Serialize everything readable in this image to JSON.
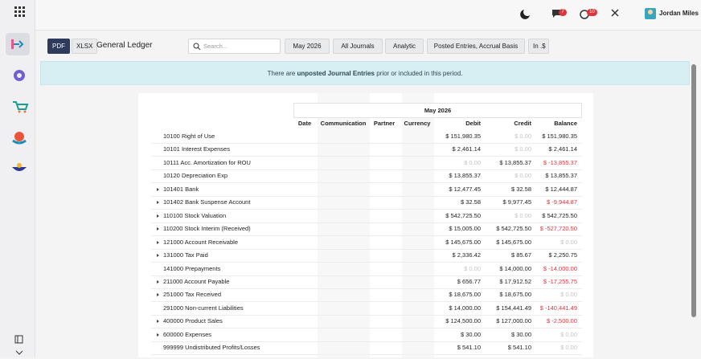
{
  "topbar": {
    "user": "Jordan Miles",
    "messages_badge": "7",
    "activities_badge": "10"
  },
  "toolbar": {
    "pdf": "PDF",
    "xlsx": "XLSX",
    "title": "General Ledger",
    "search_placeholder": "Search...",
    "filters": [
      "May 2026",
      "All Journals",
      "Analytic",
      "Posted Entries, Accrual Basis",
      "In .$"
    ]
  },
  "banner": {
    "before": "There are ",
    "link": "unposted Journal Entries",
    "after": " prior or included in this period."
  },
  "table": {
    "period": "May 2026",
    "columns": [
      "Date",
      "Communication",
      "Partner",
      "Currency",
      "Debit",
      "Credit",
      "Balance"
    ],
    "rows": [
      {
        "name": "10100 Right of Use",
        "expandable": false,
        "debit": "$ 151,980.35",
        "credit": "$ 0.00",
        "balance": "$ 151,980.35"
      },
      {
        "name": "10101 Interest Expenses",
        "expandable": false,
        "debit": "$ 2,461.14",
        "credit": "$ 0.00",
        "balance": "$ 2,461.14"
      },
      {
        "name": "10111 Acc. Amortization for ROU",
        "expandable": false,
        "debit": "$ 0.00",
        "credit": "$ 13,855.37",
        "balance": "$ -13,855.37"
      },
      {
        "name": "10120 Depreciation Exp",
        "expandable": false,
        "debit": "$ 13,855.37",
        "credit": "$ 0.00",
        "balance": "$ 13,855.37"
      },
      {
        "name": "101401 Bank",
        "expandable": true,
        "debit": "$ 12,477.45",
        "credit": "$ 32.58",
        "balance": "$ 12,444.87"
      },
      {
        "name": "101402 Bank Suspense Account",
        "expandable": true,
        "debit": "$ 32.58",
        "credit": "$ 9,977.45",
        "balance": "$ -9,944.87"
      },
      {
        "name": "110100 Stock Valuation",
        "expandable": true,
        "debit": "$ 542,725.50",
        "credit": "$ 0.00",
        "balance": "$ 542,725.50"
      },
      {
        "name": "110200 Stock Interim (Received)",
        "expandable": true,
        "debit": "$ 15,005.00",
        "credit": "$ 542,725.50",
        "balance": "$ -527,720.50"
      },
      {
        "name": "121000 Account Receivable",
        "expandable": true,
        "debit": "$ 145,675.00",
        "credit": "$ 145,675.00",
        "balance": "$ 0.00"
      },
      {
        "name": "131000 Tax Paid",
        "expandable": true,
        "debit": "$ 2,336.42",
        "credit": "$ 85.67",
        "balance": "$ 2,250.75"
      },
      {
        "name": "141000 Prepayments",
        "expandable": false,
        "debit": "$ 0.00",
        "credit": "$ 14,000.00",
        "balance": "$ -14,000.00"
      },
      {
        "name": "211000 Account Payable",
        "expandable": true,
        "debit": "$ 656.77",
        "credit": "$ 17,912.52",
        "balance": "$ -17,255.75"
      },
      {
        "name": "251000 Tax Received",
        "expandable": true,
        "debit": "$ 18,675.00",
        "credit": "$ 18,675.00",
        "balance": "$ 0.00"
      },
      {
        "name": "291000 Non-current Liabilities",
        "expandable": false,
        "debit": "$ 14,000.00",
        "credit": "$ 154,441.49",
        "balance": "$ -140,441.49"
      },
      {
        "name": "400000 Product Sales",
        "expandable": true,
        "debit": "$ 124,500.00",
        "credit": "$ 127,000.00",
        "balance": "$ -2,500.00"
      },
      {
        "name": "600000 Expenses",
        "expandable": true,
        "debit": "$ 30.00",
        "credit": "$ 30.00",
        "balance": "$ 0.00"
      },
      {
        "name": "999999 Undistributed Profits/Losses",
        "expandable": false,
        "debit": "$ 541.10",
        "credit": "$ 541.10",
        "balance": "$ 0.00"
      }
    ]
  }
}
